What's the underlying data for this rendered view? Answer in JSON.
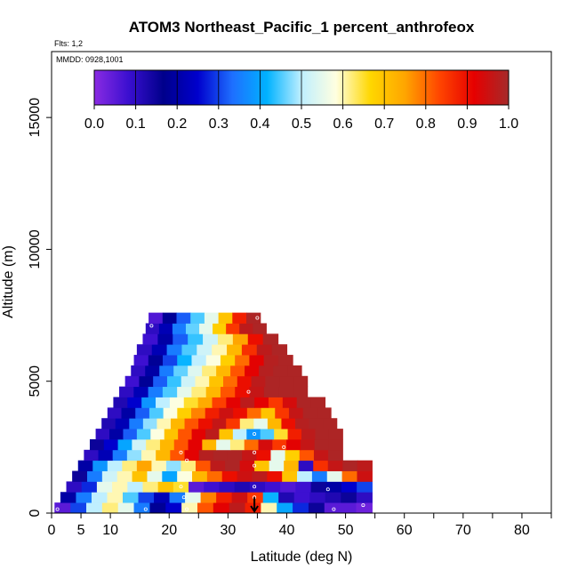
{
  "chart_data": {
    "type": "heatmap",
    "title": "ATOM3 Northeast_Pacific_1 percent_anthrofeox",
    "flights_label": "Flts: 1,2",
    "dates_label": "MMDD: 0928,1001",
    "xlabel": "Latitude (deg N)",
    "ylabel": "Altitude (m)",
    "xlim": [
      0,
      85
    ],
    "ylim": [
      0,
      17500
    ],
    "x_ticks": [
      0,
      5,
      10,
      20,
      30,
      40,
      50,
      60,
      70,
      80
    ],
    "x_minor_ticks": [
      15,
      25,
      35,
      45,
      55,
      65,
      75,
      85
    ],
    "y_ticks": [
      0,
      5000,
      10000,
      15000
    ],
    "colorbar": {
      "range": [
        0,
        1
      ],
      "ticks": [
        "0.0",
        "0.1",
        "0.2",
        "0.3",
        "0.4",
        "0.5",
        "0.6",
        "0.7",
        "0.8",
        "0.9",
        "1.0"
      ],
      "colors": [
        "#8a2be2",
        "#3a0fd0",
        "#00008b",
        "#0000cd",
        "#1e6fff",
        "#00b2ff",
        "#bfefff",
        "#ffffe0",
        "#ffd700",
        "#ffa500",
        "#ff4500",
        "#e60000",
        "#a52a2a"
      ]
    },
    "marker_arrow": {
      "lat": 34.5,
      "alt": 600
    },
    "layers": [
      {
        "alt": 200,
        "lat_min": 0.5,
        "lat_max": 54.5,
        "values": [
          0.05,
          0.3,
          0.5,
          0.62,
          0.55,
          0.35,
          0.18,
          0.25,
          0.6,
          0.82,
          0.92,
          0.97,
          0.88,
          0.6,
          0.4,
          0.28,
          0.15,
          0.05,
          0.05,
          0.03
        ]
      },
      {
        "alt": 600,
        "lat_min": 1.5,
        "lat_max": 54.5,
        "values": [
          0.2,
          0.35,
          0.5,
          0.6,
          0.45,
          0.3,
          0.22,
          0.35,
          0.55,
          0.78,
          0.88,
          0.95,
          0.85,
          0.42,
          0.12,
          0.08,
          0.1,
          0.12,
          0.15,
          0.1
        ]
      },
      {
        "alt": 1000,
        "lat_min": 2.5,
        "lat_max": 54.5,
        "values": [
          0.1,
          0.28,
          0.55,
          0.6,
          0.5,
          0.62,
          0.7,
          0.65,
          0.05,
          0.08,
          0.1,
          0.12,
          0.1,
          0.08,
          0.06,
          0.08,
          0.15,
          0.2,
          0.25,
          0.3
        ]
      },
      {
        "alt": 1400,
        "lat_min": 3.5,
        "lat_max": 54.5,
        "values": [
          0.15,
          0.35,
          0.52,
          0.6,
          0.7,
          0.55,
          0.4,
          0.58,
          0.72,
          0.8,
          0.9,
          0.95,
          0.97,
          0.9,
          0.7,
          0.5,
          0.35,
          0.55,
          0.8,
          0.95
        ]
      },
      {
        "alt": 1800,
        "lat_min": 4.5,
        "lat_max": 54.5,
        "values": [
          0.2,
          0.38,
          0.5,
          0.62,
          0.75,
          0.6,
          0.48,
          0.62,
          0.82,
          0.97,
          0.99,
          0.94,
          0.7,
          0.55,
          0.72,
          0.1,
          0.86,
          0.96,
          0.99,
          0.97
        ]
      },
      {
        "alt": 2200,
        "lat_min": 5.5,
        "lat_max": 49.5,
        "values": [
          0.1,
          0.22,
          0.35,
          0.48,
          0.6,
          0.72,
          0.82,
          0.92,
          0.98,
          0.99,
          0.99,
          0.96,
          0.9,
          0.55,
          0.68,
          0.82,
          0.96,
          0.99
        ]
      },
      {
        "alt": 2600,
        "lat_min": 6.5,
        "lat_max": 49.5,
        "values": [
          0.15,
          0.25,
          0.4,
          0.52,
          0.62,
          0.72,
          0.82,
          0.92,
          0.72,
          0.55,
          0.62,
          0.8,
          0.94,
          0.85,
          0.92,
          0.96,
          0.99,
          0.99
        ]
      },
      {
        "alt": 3000,
        "lat_min": 7.5,
        "lat_max": 49.5,
        "values": [
          0.1,
          0.2,
          0.32,
          0.45,
          0.58,
          0.7,
          0.82,
          0.92,
          0.97,
          0.7,
          0.5,
          0.38,
          0.45,
          0.65,
          0.88,
          0.97,
          0.99,
          0.99
        ]
      },
      {
        "alt": 3400,
        "lat_min": 8.5,
        "lat_max": 48.5,
        "values": [
          0.12,
          0.22,
          0.35,
          0.48,
          0.6,
          0.72,
          0.82,
          0.9,
          0.96,
          0.85,
          0.62,
          0.55,
          0.72,
          0.9,
          0.98,
          0.99,
          0.99
        ]
      },
      {
        "alt": 3800,
        "lat_min": 9.5,
        "lat_max": 47.5,
        "values": [
          0.1,
          0.2,
          0.32,
          0.45,
          0.58,
          0.68,
          0.78,
          0.88,
          0.95,
          0.9,
          0.8,
          0.7,
          0.85,
          0.96,
          0.99,
          0.99
        ]
      },
      {
        "alt": 4200,
        "lat_min": 10.5,
        "lat_max": 46.5,
        "values": [
          0.12,
          0.25,
          0.38,
          0.5,
          0.58,
          0.65,
          0.74,
          0.84,
          0.92,
          0.97,
          0.92,
          0.85,
          0.94,
          0.99,
          0.99
        ]
      },
      {
        "alt": 4600,
        "lat_min": 11.5,
        "lat_max": 43.5,
        "values": [
          0.1,
          0.22,
          0.35,
          0.45,
          0.55,
          0.62,
          0.72,
          0.82,
          0.9,
          0.96,
          0.99,
          0.99,
          0.99
        ]
      },
      {
        "alt": 5000,
        "lat_min": 12.5,
        "lat_max": 43.5,
        "values": [
          0.08,
          0.18,
          0.32,
          0.44,
          0.52,
          0.6,
          0.7,
          0.8,
          0.9,
          0.97,
          0.99,
          0.99,
          0.99
        ]
      },
      {
        "alt": 5400,
        "lat_min": 13.5,
        "lat_max": 42.5,
        "values": [
          0.1,
          0.2,
          0.35,
          0.46,
          0.54,
          0.62,
          0.72,
          0.82,
          0.92,
          0.98,
          0.99,
          0.99
        ]
      },
      {
        "alt": 5800,
        "lat_min": 14.0,
        "lat_max": 41.0,
        "values": [
          0.08,
          0.18,
          0.3,
          0.42,
          0.5,
          0.58,
          0.68,
          0.8,
          0.92,
          0.98,
          0.99
        ]
      },
      {
        "alt": 6200,
        "lat_min": 14.5,
        "lat_max": 40.0,
        "values": [
          0.1,
          0.22,
          0.35,
          0.45,
          0.52,
          0.6,
          0.72,
          0.86,
          0.97,
          0.99
        ]
      },
      {
        "alt": 6600,
        "lat_min": 15.5,
        "lat_max": 38.5,
        "values": [
          0.08,
          0.2,
          0.32,
          0.44,
          0.52,
          0.62,
          0.75,
          0.9,
          0.99
        ]
      },
      {
        "alt": 7000,
        "lat_min": 16.0,
        "lat_max": 36.5,
        "values": [
          0.1,
          0.22,
          0.35,
          0.46,
          0.55,
          0.68,
          0.85,
          0.97,
          0.99
        ]
      },
      {
        "alt": 7400,
        "lat_min": 16.5,
        "lat_max": 35.5,
        "values": [
          0.06,
          0.18,
          0.32,
          0.45,
          0.55,
          0.7,
          0.88,
          0.99
        ]
      }
    ],
    "samples": [
      [
        1,
        150
      ],
      [
        16,
        150
      ],
      [
        23,
        150
      ],
      [
        48,
        150
      ],
      [
        53,
        300
      ],
      [
        22.5,
        600
      ],
      [
        34.5,
        600
      ],
      [
        47,
        900
      ],
      [
        22,
        1000
      ],
      [
        34.5,
        1000
      ],
      [
        23,
        2000
      ],
      [
        34.5,
        1800
      ],
      [
        55,
        1900
      ],
      [
        22,
        2300
      ],
      [
        34.5,
        2300
      ],
      [
        39.5,
        2500
      ],
      [
        34.5,
        3000
      ],
      [
        33.5,
        4600
      ],
      [
        17,
        7100
      ],
      [
        35,
        7400
      ]
    ]
  }
}
